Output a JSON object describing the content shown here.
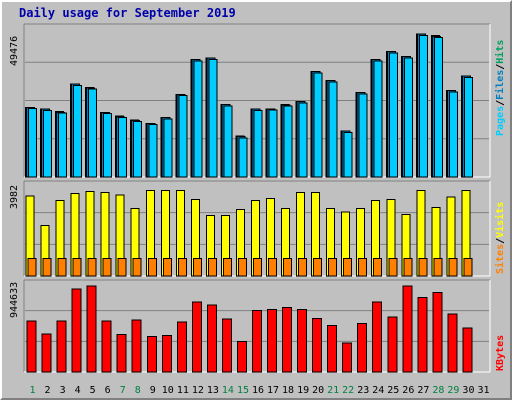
{
  "title": "Daily usage for September 2019",
  "colors": {
    "pages": "#00ccff",
    "files": "#0080c0",
    "hits": "#00a060",
    "visits": "#ffff00",
    "sites": "#ff8000",
    "kbytes": "#ff0000",
    "weekend_label": "#008040",
    "weekday_label": "#000000"
  },
  "chart_data": [
    {
      "type": "bar",
      "panel": "hits-files-pages",
      "y_max_label": "49476",
      "ylim": [
        0,
        49476
      ],
      "legend": [
        {
          "name": "Pages",
          "color": "#00ccff"
        },
        {
          "name": "Files",
          "color": "#0080c0"
        },
        {
          "name": "Hits",
          "color": "#00a060"
        }
      ],
      "categories": [
        "1",
        "2",
        "3",
        "4",
        "5",
        "6",
        "7",
        "8",
        "9",
        "10",
        "11",
        "12",
        "13",
        "14",
        "15",
        "16",
        "17",
        "18",
        "19",
        "20",
        "21",
        "22",
        "23",
        "24",
        "25",
        "26",
        "27",
        "28",
        "29",
        "30",
        "31"
      ],
      "weekend_days": [
        "1",
        "7",
        "8",
        "14",
        "15",
        "21",
        "22",
        "28",
        "29"
      ],
      "series": [
        {
          "name": "Hits",
          "values": [
            23000,
            22500,
            21700,
            30800,
            29800,
            21500,
            20200,
            19000,
            17800,
            19700,
            27400,
            39000,
            39500,
            24000,
            13600,
            22500,
            22600,
            24000,
            25100,
            35000,
            32000,
            15300,
            28000,
            39000,
            41700,
            40000,
            47500,
            47000,
            28800,
            33500,
            0
          ]
        },
        {
          "name": "Files",
          "values": [
            23000,
            22500,
            21500,
            30800,
            29500,
            21500,
            20000,
            18800,
            17800,
            19700,
            27400,
            39000,
            39500,
            24000,
            13400,
            22500,
            22600,
            23900,
            25100,
            35000,
            32000,
            15200,
            28000,
            39000,
            41700,
            40000,
            47500,
            46700,
            28800,
            33500,
            0
          ]
        },
        {
          "name": "Pages",
          "values": [
            22800,
            22100,
            21200,
            30300,
            29300,
            21100,
            19800,
            18500,
            17400,
            19300,
            27000,
            38500,
            39000,
            23500,
            13000,
            22000,
            22200,
            23500,
            24600,
            34500,
            31500,
            14800,
            27500,
            38500,
            41200,
            39500,
            47000,
            46300,
            28300,
            33000,
            0
          ]
        }
      ]
    },
    {
      "type": "bar",
      "panel": "visits-sites",
      "y_max_label": "3982",
      "ylim": [
        0,
        3982
      ],
      "legend": [
        {
          "name": "Sites",
          "color": "#ff8000"
        },
        {
          "name": "Visits",
          "color": "#ffff00"
        }
      ],
      "categories": [
        "1",
        "2",
        "3",
        "4",
        "5",
        "6",
        "7",
        "8",
        "9",
        "10",
        "11",
        "12",
        "13",
        "14",
        "15",
        "16",
        "17",
        "18",
        "19",
        "20",
        "21",
        "22",
        "23",
        "24",
        "25",
        "26",
        "27",
        "28",
        "29",
        "30",
        "31"
      ],
      "series": [
        {
          "name": "Visits",
          "values": [
            3500,
            2200,
            3300,
            3600,
            3700,
            3650,
            3550,
            2950,
            3750,
            3750,
            3750,
            3350,
            2650,
            2650,
            2900,
            3300,
            3400,
            2950,
            3650,
            3650,
            2950,
            2800,
            2950,
            3300,
            3350,
            2700,
            3750,
            3000,
            3450,
            3750,
            0
          ]
        },
        {
          "name": "Sites",
          "values": [
            770,
            770,
            770,
            770,
            770,
            770,
            770,
            770,
            770,
            770,
            770,
            770,
            770,
            770,
            770,
            770,
            770,
            770,
            770,
            770,
            770,
            770,
            770,
            770,
            770,
            770,
            770,
            770,
            770,
            770,
            0
          ]
        }
      ]
    },
    {
      "type": "bar",
      "panel": "kbytes",
      "y_max_label": "944633",
      "ylim": [
        0,
        944633
      ],
      "legend": [
        {
          "name": "KBytes",
          "color": "#ff0000"
        }
      ],
      "categories": [
        "1",
        "2",
        "3",
        "4",
        "5",
        "6",
        "7",
        "8",
        "9",
        "10",
        "11",
        "12",
        "13",
        "14",
        "15",
        "16",
        "17",
        "18",
        "19",
        "20",
        "21",
        "22",
        "23",
        "24",
        "25",
        "26",
        "27",
        "28",
        "29",
        "30",
        "31"
      ],
      "series": [
        {
          "name": "KBytes",
          "values": [
            545000,
            410000,
            545000,
            890000,
            925000,
            545000,
            400000,
            560000,
            380000,
            390000,
            535000,
            750000,
            720000,
            570000,
            325000,
            660000,
            670000,
            690000,
            670000,
            575000,
            500000,
            310000,
            520000,
            750000,
            590000,
            925000,
            800000,
            855000,
            620000,
            475000,
            0
          ]
        }
      ]
    }
  ]
}
